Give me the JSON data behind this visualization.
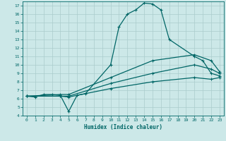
{
  "xlabel": "Humidex (Indice chaleur)",
  "bg_color": "#cce8e8",
  "grid_color": "#aacccc",
  "line_color": "#006666",
  "xlim": [
    -0.5,
    23.5
  ],
  "ylim": [
    4,
    17.5
  ],
  "xticks": [
    0,
    1,
    2,
    3,
    4,
    5,
    6,
    7,
    8,
    9,
    10,
    11,
    12,
    13,
    14,
    15,
    16,
    17,
    18,
    19,
    20,
    21,
    22,
    23
  ],
  "yticks": [
    4,
    5,
    6,
    7,
    8,
    9,
    10,
    11,
    12,
    13,
    14,
    15,
    16,
    17
  ],
  "curve1_x": [
    0,
    1,
    2,
    3,
    4,
    5,
    6,
    7,
    10,
    11,
    12,
    13,
    14,
    15,
    16,
    17,
    20,
    21,
    22,
    23
  ],
  "curve1_y": [
    6.3,
    6.2,
    6.5,
    6.5,
    6.4,
    4.5,
    6.4,
    6.6,
    10.0,
    14.5,
    16.0,
    16.5,
    17.3,
    17.2,
    16.5,
    13.0,
    11.0,
    10.5,
    9.0,
    8.7
  ],
  "curve2_x": [
    0,
    4,
    5,
    10,
    15,
    20,
    22,
    23
  ],
  "curve2_y": [
    6.3,
    6.3,
    6.2,
    7.2,
    8.0,
    8.5,
    8.3,
    8.5
  ],
  "curve3_x": [
    0,
    4,
    5,
    10,
    15,
    20,
    22,
    23
  ],
  "curve3_y": [
    6.3,
    6.3,
    6.3,
    7.8,
    9.0,
    10.0,
    9.5,
    9.0
  ],
  "curve4_x": [
    0,
    4,
    5,
    10,
    15,
    20,
    22,
    23
  ],
  "curve4_y": [
    6.3,
    6.5,
    6.5,
    8.5,
    10.5,
    11.2,
    10.5,
    9.2
  ]
}
